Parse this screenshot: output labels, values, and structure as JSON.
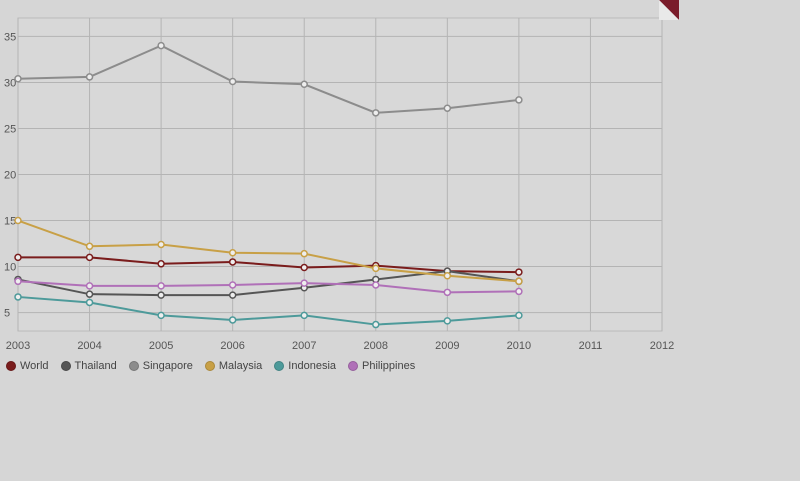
{
  "chart_data": {
    "type": "line",
    "title": "",
    "xlabel": "",
    "ylabel": "",
    "x": [
      2003,
      2004,
      2005,
      2006,
      2007,
      2008,
      2009,
      2010
    ],
    "x_ticks": [
      "2003",
      "2004",
      "2005",
      "2006",
      "2007",
      "2008",
      "2009",
      "2010",
      "2011",
      "2012"
    ],
    "y_ticks": [
      "5",
      "10",
      "15",
      "20",
      "25",
      "30",
      "35"
    ],
    "xlim": [
      2003,
      2012
    ],
    "ylim": [
      3,
      37
    ],
    "grid": true,
    "legend_position": "bottom-left",
    "series": [
      {
        "name": "World",
        "color": "#7a1c1c",
        "values": [
          11.0,
          11.0,
          10.3,
          10.5,
          9.9,
          10.1,
          9.5,
          9.4
        ]
      },
      {
        "name": "Thailand",
        "color": "#555555",
        "values": [
          8.6,
          7.0,
          6.9,
          6.9,
          7.7,
          8.6,
          9.5,
          8.4
        ]
      },
      {
        "name": "Singapore",
        "color": "#8c8c8c",
        "values": [
          30.4,
          30.6,
          34.0,
          30.1,
          29.8,
          26.7,
          27.2,
          28.1
        ]
      },
      {
        "name": "Malaysia",
        "color": "#c8a046",
        "values": [
          15.0,
          12.2,
          12.4,
          11.5,
          11.4,
          9.8,
          9.0,
          8.4
        ]
      },
      {
        "name": "Indonesia",
        "color": "#4d9a9a",
        "values": [
          6.7,
          6.1,
          4.7,
          4.2,
          4.7,
          3.7,
          4.1,
          4.7
        ]
      },
      {
        "name": "Philippines",
        "color": "#b070b8",
        "values": [
          8.4,
          7.9,
          7.9,
          8.0,
          8.2,
          8.0,
          7.2,
          7.3
        ]
      }
    ]
  },
  "ui": {
    "corner_icon": "corner-fold-icon",
    "accent": "#7a1c1c"
  }
}
